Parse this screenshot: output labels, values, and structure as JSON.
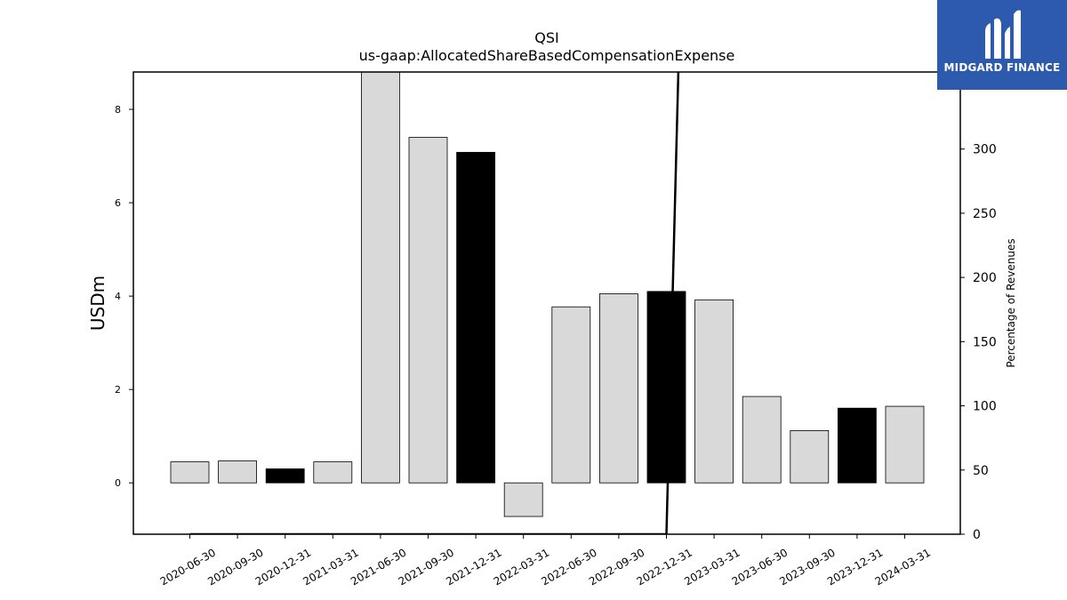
{
  "chart_data": {
    "type": "bar",
    "title": "QSI",
    "subtitle": "us-gaap:AllocatedShareBasedCompensationExpense",
    "ylabel": "USDm",
    "y2label": "Percentage of Revenues",
    "categories": [
      "2020-06-30",
      "2020-09-30",
      "2020-12-31",
      "2021-03-31",
      "2021-06-30",
      "2021-09-30",
      "2021-12-31",
      "2022-03-31",
      "2022-06-30",
      "2022-09-30",
      "2022-12-31",
      "2023-03-31",
      "2023-06-30",
      "2023-09-30",
      "2023-12-31",
      "2024-03-31"
    ],
    "values": [
      0.45,
      0.47,
      0.3,
      0.45,
      8.9,
      7.4,
      7.08,
      -0.72,
      3.77,
      4.05,
      4.1,
      3.92,
      1.85,
      1.12,
      1.6,
      1.64
    ],
    "highlight": [
      false,
      false,
      true,
      false,
      false,
      false,
      true,
      false,
      false,
      false,
      true,
      false,
      false,
      false,
      true,
      false
    ],
    "ylim": [
      -1.1,
      8.8
    ],
    "yticks": [
      0,
      2,
      4,
      6,
      8
    ],
    "y2lim": [
      0,
      360
    ],
    "y2ticks": [
      0,
      50,
      100,
      150,
      200,
      250,
      300
    ],
    "line": {
      "name": "Percentage of Revenues",
      "x_index": [
        0,
        1,
        2,
        3,
        4,
        5,
        6,
        7,
        8,
        9,
        10,
        10.25
      ],
      "values": [
        0,
        0,
        0,
        0,
        0,
        0,
        0,
        0,
        0,
        0,
        0,
        360
      ]
    },
    "colors": {
      "bar": "#d9d9d9",
      "highlight": "#000000",
      "line": "#000000"
    }
  },
  "logo": {
    "text": "MIDGARD FINANCE",
    "bg": "#2d5aad"
  }
}
